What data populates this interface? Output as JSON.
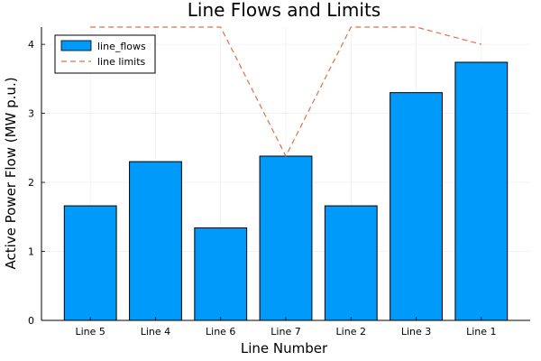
{
  "chart_data": {
    "type": "bar",
    "title": "Line Flows and Limits",
    "xlabel": "Line Number",
    "ylabel": "Active Power Flow (MW p.u.)",
    "categories": [
      "Line 5",
      "Line 4",
      "Line 6",
      "Line 7",
      "Line 2",
      "Line 3",
      "Line 1"
    ],
    "ylim": [
      0,
      4.25
    ],
    "yticks": [
      0,
      1,
      2,
      3,
      4
    ],
    "grid": true,
    "legend_position": "top-left",
    "series": [
      {
        "name": "line_flows",
        "kind": "bar",
        "color": "#009AFA",
        "values": [
          1.66,
          2.3,
          1.34,
          2.38,
          1.66,
          3.3,
          3.74
        ]
      },
      {
        "name": "line limits",
        "kind": "line",
        "style": "dashed",
        "color": "#E26F46",
        "values": [
          4.25,
          4.25,
          4.25,
          2.38,
          4.25,
          4.25,
          4.0
        ]
      }
    ]
  }
}
